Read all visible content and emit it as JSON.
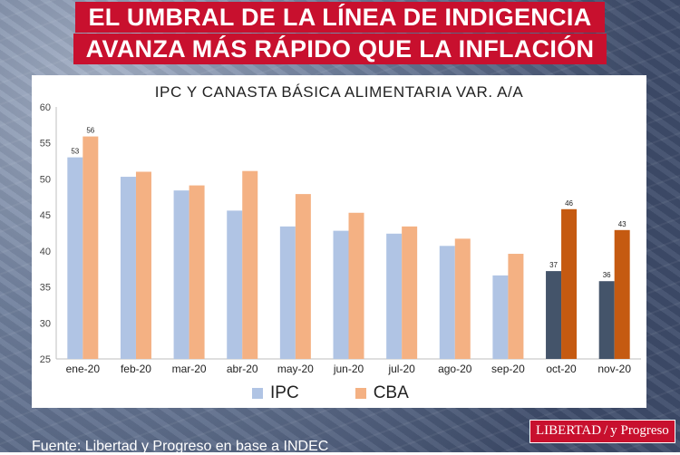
{
  "banner": {
    "line1": "EL UMBRAL DE LA LÍNEA DE INDIGENCIA",
    "line2": "AVANZA MÁS RÁPIDO QUE LA INFLACIÓN"
  },
  "colors": {
    "ipc": "#b0c4e4",
    "cba": "#f4b183",
    "ipc_highlight": "#44546a",
    "cba_highlight": "#c55a11",
    "banner_red": "#c8102e"
  },
  "chart_data": {
    "type": "bar",
    "title": "IPC Y CANASTA BÁSICA ALIMENTARIA VAR. A/A",
    "categories": [
      "ene-20",
      "feb-20",
      "mar-20",
      "abr-20",
      "may-20",
      "jun-20",
      "jul-20",
      "ago-20",
      "sep-20",
      "oct-20",
      "nov-20"
    ],
    "series": [
      {
        "name": "IPC",
        "values": [
          53,
          50.3,
          48.4,
          45.6,
          43.4,
          42.8,
          42.4,
          40.7,
          36.6,
          37.2,
          35.8
        ]
      },
      {
        "name": "CBA",
        "values": [
          55.9,
          51.0,
          49.1,
          51.1,
          47.9,
          45.3,
          43.4,
          41.7,
          39.6,
          45.8,
          42.9
        ]
      }
    ],
    "data_labels": [
      {
        "category": "ene-20",
        "series": "IPC",
        "text": "53"
      },
      {
        "category": "ene-20",
        "series": "CBA",
        "text": "56"
      },
      {
        "category": "oct-20",
        "series": "IPC",
        "text": "37"
      },
      {
        "category": "oct-20",
        "series": "CBA",
        "text": "46"
      },
      {
        "category": "nov-20",
        "series": "IPC",
        "text": "36"
      },
      {
        "category": "nov-20",
        "series": "CBA",
        "text": "43"
      }
    ],
    "highlighted_categories": [
      "oct-20",
      "nov-20"
    ],
    "ylim": [
      25,
      60
    ],
    "yticks": [
      25,
      30,
      35,
      40,
      45,
      50,
      55,
      60
    ],
    "grid": false,
    "legend_position": "bottom"
  },
  "legend": {
    "ipc": "IPC",
    "cba": "CBA"
  },
  "footer": {
    "source": "Fuente: Libertad y Progreso en base a INDEC"
  },
  "logo": {
    "left": "LIBERTAD",
    "right": "y Progreso"
  }
}
